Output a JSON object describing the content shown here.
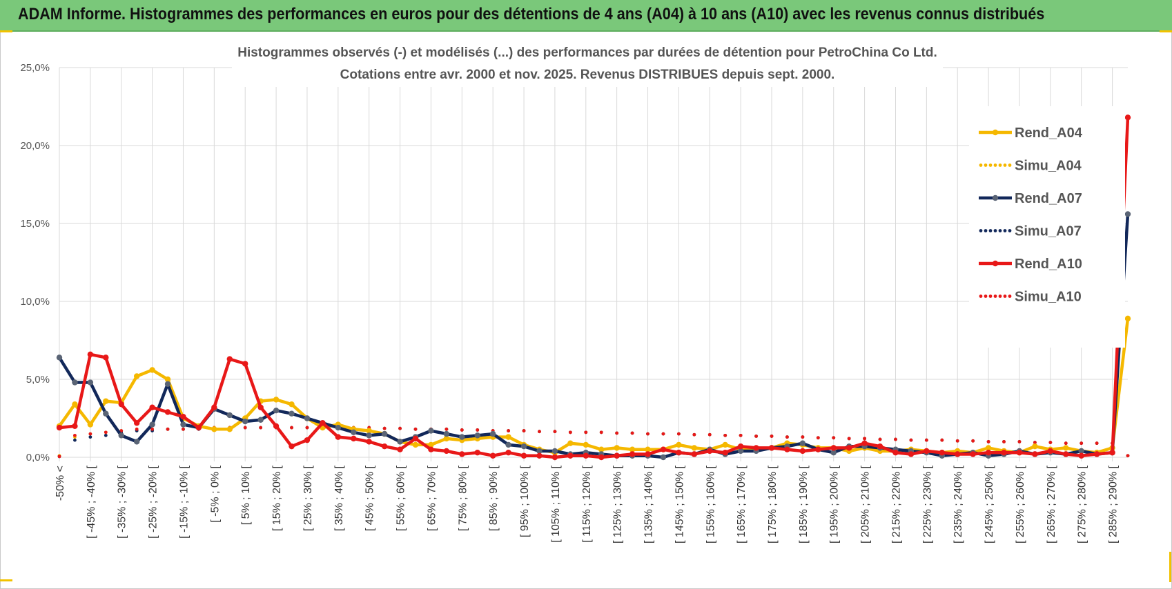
{
  "banner": {
    "title": "ADAM Informe. Histogrammes des performances en euros pour des détentions de 4 ans (A04) à 10 ans (A10) avec les revenus connus distribués",
    "color": "#7ac87a"
  },
  "chart_data": {
    "type": "line",
    "title": [
      "Histogrammes observés (-) et modélisés (...) des performances par durées de détention pour PetroChina Co Ltd.",
      "Cotations entre avr. 2000 et nov. 2025. Revenus DISTRIBUES depuis sept. 2000."
    ],
    "xlabel": "",
    "ylabel": "",
    "ylim": [
      0,
      25
    ],
    "y_ticks": [
      "0,0%",
      "5,0%",
      "10,0%",
      "15,0%",
      "20,0%",
      "25,0%"
    ],
    "grid": true,
    "legend_position": "right",
    "x_labels": [
      "-50% <",
      "[ -45% ; -40% [",
      "[ -35% ; -30% [",
      "[ -25% ; -20% [",
      "[ -15% ; -10% [",
      "[ -5% ; 0% [",
      "[ 5% ; 10% [",
      "[ 15% ; 20% [",
      "[ 25% ; 30% [",
      "[ 35% ; 40% [",
      "[ 45% ; 50% [",
      "[ 55% ; 60% [",
      "[ 65% ; 70% [",
      "[ 75% ; 80% [",
      "[ 85% ; 90% [",
      "[ 95% ; 100% [",
      "[ 105% ; 110% [",
      "[ 115% ; 120% [",
      "[ 125% ; 130% [",
      "[ 135% ; 140% [",
      "[ 145% ; 150% [",
      "[ 155% ; 160% [",
      "[ 165% ; 170% [",
      "[ 175% ; 180% [",
      "[ 185% ; 190% [",
      "[ 195% ; 200% [",
      "[ 205% ; 210% [",
      "[ 215% ; 220% [",
      "[ 225% ; 230% [",
      "[ 235% ; 240% [",
      "[ 245% ; 250% [",
      "[ 255% ; 260% [",
      "[ 265% ; 270% [",
      "[ 275% ; 280% [",
      "[ 285% ; 290% ["
    ],
    "series": [
      {
        "name": "Rend_A04",
        "style": "solid",
        "color": "#f5b800",
        "values": [
          2.0,
          3.4,
          2.1,
          3.6,
          3.5,
          5.2,
          5.6,
          5.0,
          2.5,
          2.0,
          1.8,
          1.8,
          2.5,
          3.6,
          3.7,
          3.4,
          2.5,
          1.9,
          2.1,
          1.8,
          1.7,
          1.5,
          1.0,
          0.8,
          0.8,
          1.2,
          1.1,
          1.2,
          1.3,
          1.3,
          0.8,
          0.5,
          0.3,
          0.9,
          0.8,
          0.5,
          0.6,
          0.5,
          0.5,
          0.5,
          0.8,
          0.6,
          0.5,
          0.8,
          0.5,
          0.5,
          0.6,
          0.9,
          0.8,
          0.6,
          0.6,
          0.4,
          0.6,
          0.4,
          0.4,
          0.5,
          0.4,
          0.3,
          0.4,
          0.3,
          0.6,
          0.4,
          0.3,
          0.7,
          0.5,
          0.6,
          0.4,
          0.3,
          0.6,
          8.9
        ]
      },
      {
        "name": "Simu_A04",
        "style": "dotted",
        "color": "#f5b800",
        "values": [
          0.1,
          1.3,
          1.5,
          1.6,
          1.7,
          1.8,
          1.8,
          1.8,
          1.8,
          1.9,
          1.9,
          1.9,
          1.9,
          1.9,
          1.9,
          1.9,
          1.9,
          1.9,
          1.9,
          1.9,
          1.9,
          1.85,
          1.85,
          1.8,
          1.8,
          1.8,
          1.75,
          1.75,
          1.7,
          1.7,
          1.7,
          1.65,
          1.65,
          1.6,
          1.6,
          1.6,
          1.55,
          1.55,
          1.5,
          1.5,
          1.5,
          1.45,
          1.45,
          1.4,
          1.4,
          1.35,
          1.35,
          1.3,
          1.3,
          1.25,
          1.25,
          1.2,
          1.2,
          1.15,
          1.15,
          1.1,
          1.1,
          1.1,
          1.05,
          1.05,
          1.0,
          1.0,
          1.0,
          0.95,
          0.95,
          0.9,
          0.9,
          0.9,
          0.9,
          0.1
        ]
      },
      {
        "name": "Rend_A07",
        "style": "solid",
        "color": "#12285a",
        "values": [
          6.4,
          4.8,
          4.8,
          2.8,
          1.4,
          1.0,
          2.1,
          4.7,
          2.1,
          1.9,
          3.1,
          2.7,
          2.3,
          2.4,
          3.0,
          2.8,
          2.5,
          2.2,
          1.9,
          1.6,
          1.4,
          1.5,
          1.0,
          1.3,
          1.7,
          1.5,
          1.3,
          1.4,
          1.5,
          0.8,
          0.7,
          0.4,
          0.4,
          0.2,
          0.3,
          0.2,
          0.1,
          0.1,
          0.1,
          0.0,
          0.3,
          0.2,
          0.5,
          0.2,
          0.4,
          0.4,
          0.6,
          0.7,
          0.9,
          0.5,
          0.3,
          0.7,
          0.7,
          0.6,
          0.5,
          0.4,
          0.3,
          0.1,
          0.2,
          0.3,
          0.1,
          0.2,
          0.4,
          0.2,
          0.3,
          0.2,
          0.4,
          0.2,
          0.3,
          15.6
        ]
      },
      {
        "name": "Simu_A07",
        "style": "dotted",
        "color": "#12285a",
        "values": [
          0.05,
          1.1,
          1.3,
          1.4,
          1.6,
          1.7,
          1.7,
          1.8,
          1.8,
          1.8,
          1.9,
          1.9,
          1.9,
          1.9,
          1.9,
          1.9,
          1.9,
          1.9,
          1.9,
          1.9,
          1.9,
          1.85,
          1.85,
          1.8,
          1.8,
          1.8,
          1.75,
          1.75,
          1.7,
          1.7,
          1.7,
          1.65,
          1.65,
          1.6,
          1.6,
          1.6,
          1.55,
          1.55,
          1.5,
          1.5,
          1.5,
          1.45,
          1.45,
          1.4,
          1.4,
          1.35,
          1.35,
          1.3,
          1.3,
          1.25,
          1.25,
          1.2,
          1.2,
          1.15,
          1.15,
          1.1,
          1.1,
          1.1,
          1.05,
          1.05,
          1.0,
          1.0,
          1.0,
          0.95,
          0.95,
          0.9,
          0.9,
          0.9,
          0.9,
          0.1
        ]
      },
      {
        "name": "Rend_A10",
        "style": "solid",
        "color": "#e81818",
        "values": [
          1.9,
          2.0,
          6.6,
          6.4,
          3.4,
          2.2,
          3.2,
          2.9,
          2.6,
          1.9,
          3.2,
          6.3,
          6.0,
          3.2,
          2.0,
          0.7,
          1.1,
          2.2,
          1.3,
          1.2,
          1.0,
          0.7,
          0.5,
          1.2,
          0.5,
          0.4,
          0.2,
          0.3,
          0.1,
          0.3,
          0.1,
          0.1,
          0.0,
          0.1,
          0.1,
          0.0,
          0.1,
          0.2,
          0.2,
          0.5,
          0.3,
          0.2,
          0.4,
          0.3,
          0.7,
          0.6,
          0.6,
          0.5,
          0.4,
          0.5,
          0.6,
          0.6,
          0.9,
          0.7,
          0.3,
          0.2,
          0.4,
          0.3,
          0.2,
          0.2,
          0.3,
          0.3,
          0.3,
          0.2,
          0.4,
          0.2,
          0.1,
          0.2,
          0.3,
          21.8
        ]
      },
      {
        "name": "Simu_A10",
        "style": "dotted",
        "color": "#e81818",
        "values": [
          0.05,
          1.4,
          1.5,
          1.6,
          1.7,
          1.8,
          1.8,
          1.8,
          1.8,
          1.9,
          1.9,
          1.9,
          1.9,
          1.9,
          1.9,
          1.9,
          1.9,
          1.9,
          1.9,
          1.9,
          1.9,
          1.85,
          1.85,
          1.8,
          1.8,
          1.8,
          1.75,
          1.75,
          1.7,
          1.7,
          1.7,
          1.65,
          1.65,
          1.6,
          1.6,
          1.6,
          1.55,
          1.55,
          1.5,
          1.5,
          1.5,
          1.45,
          1.45,
          1.4,
          1.4,
          1.35,
          1.35,
          1.3,
          1.3,
          1.25,
          1.25,
          1.2,
          1.2,
          1.15,
          1.15,
          1.1,
          1.1,
          1.1,
          1.05,
          1.05,
          1.0,
          1.0,
          1.0,
          0.95,
          0.95,
          0.9,
          0.9,
          0.9,
          0.9,
          0.1
        ]
      }
    ]
  }
}
